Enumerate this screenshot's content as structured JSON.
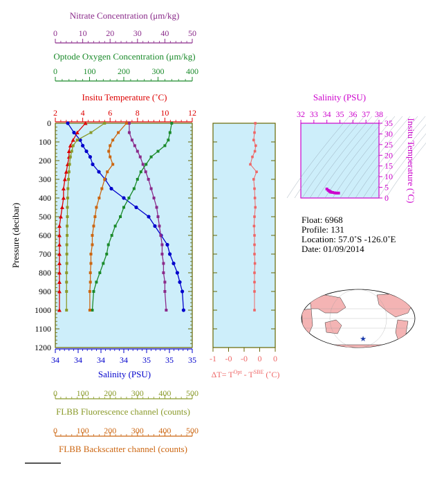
{
  "chart_data": {
    "type": "line",
    "profile_panel": {
      "pressure_axis": {
        "label": "Pressure (decibar)",
        "ticks": [
          "0",
          "100",
          "200",
          "300",
          "400",
          "500",
          "600",
          "700",
          "800",
          "900",
          "1000",
          "1100",
          "1200"
        ],
        "range": [
          0,
          1200
        ]
      },
      "nitrate_axis": {
        "label": "Nitrate Concentration (μm/kg)",
        "ticks": [
          "0",
          "10",
          "20",
          "30",
          "40",
          "50"
        ],
        "range": [
          0,
          50
        ],
        "color": "#8a2a8a"
      },
      "oxygen_axis": {
        "label": "Optode Oxygen Concentration (μm/kg)",
        "ticks": [
          "0",
          "100",
          "200",
          "300",
          "400"
        ],
        "range": [
          0,
          400
        ],
        "color": "#1a8a2a"
      },
      "temperature_axis": {
        "label": "Insitu Temperature (˚C)",
        "ticks": [
          "2",
          "4",
          "6",
          "8",
          "10",
          "12"
        ],
        "range": [
          2,
          12
        ],
        "color": "#dd0000"
      },
      "salinity_axis": {
        "label": "Salinity (PSU)",
        "ticks": [
          "34",
          "34",
          "34",
          "34",
          "35",
          "35",
          "35"
        ],
        "range": [
          33.9,
          35.0
        ],
        "color": "#0000cc"
      },
      "fluorescence_axis": {
        "label": "FLBB Fluorescence channel (counts)",
        "ticks": [
          "0",
          "100",
          "200",
          "300",
          "400",
          "500"
        ],
        "range": [
          0,
          500
        ],
        "color": "#8a9a2a"
      },
      "backscatter_axis": {
        "label": "FLBB Backscatter channel (counts)",
        "ticks": [
          "0",
          "100",
          "200",
          "300",
          "400",
          "500"
        ],
        "range": [
          0,
          500
        ],
        "color": "#cc6611"
      },
      "series": [
        {
          "key": "temperature",
          "color": "#dd0000",
          "marker": "triangle",
          "x": [
            4.2,
            3.6,
            3.3,
            3.1,
            3.0,
            3.0,
            2.9,
            2.8,
            2.7,
            2.6,
            2.6,
            2.5,
            2.4,
            2.3,
            2.3,
            2.3,
            2.3,
            2.3,
            2.3,
            2.3,
            2.3,
            2.3
          ],
          "y": [
            0,
            50,
            90,
            120,
            150,
            180,
            220,
            260,
            300,
            350,
            400,
            450,
            500,
            550,
            600,
            650,
            700,
            750,
            800,
            850,
            900,
            1000
          ]
        },
        {
          "key": "salinity",
          "color": "#0000cc",
          "marker": "circle",
          "x": [
            34.0,
            34.05,
            34.1,
            34.12,
            34.15,
            34.18,
            34.2,
            34.25,
            34.3,
            34.35,
            34.45,
            34.55,
            34.65,
            34.7,
            34.75,
            34.8,
            34.82,
            34.85,
            34.88,
            34.9,
            34.92,
            34.93
          ],
          "y": [
            0,
            50,
            90,
            120,
            150,
            180,
            220,
            260,
            300,
            350,
            400,
            450,
            500,
            550,
            600,
            650,
            700,
            750,
            800,
            850,
            900,
            1000
          ]
        },
        {
          "key": "nitrate",
          "color": "#8a2a8a",
          "marker": "square",
          "x": [
            27,
            27,
            28,
            29,
            30,
            31,
            32,
            33,
            34,
            35,
            36,
            37,
            37.5,
            38,
            38.5,
            39,
            39,
            39.5,
            39.5,
            40,
            40,
            40.5
          ],
          "y": [
            0,
            50,
            90,
            120,
            150,
            180,
            220,
            260,
            300,
            350,
            400,
            450,
            500,
            550,
            600,
            650,
            700,
            750,
            800,
            850,
            900,
            1000
          ]
        },
        {
          "key": "oxygen",
          "color": "#1a8a2a",
          "marker": "square",
          "x": [
            340,
            335,
            330,
            320,
            300,
            280,
            265,
            250,
            240,
            230,
            215,
            200,
            190,
            175,
            165,
            155,
            150,
            140,
            130,
            120,
            112,
            108
          ],
          "y": [
            0,
            50,
            90,
            120,
            150,
            180,
            220,
            260,
            300,
            350,
            400,
            450,
            500,
            550,
            600,
            650,
            700,
            750,
            800,
            850,
            900,
            1000
          ]
        },
        {
          "key": "fluorescence",
          "color": "#8a9a2a",
          "marker": "square",
          "x": [
            180,
            130,
            80,
            65,
            60,
            55,
            52,
            50,
            48,
            46,
            45,
            44,
            44,
            43,
            43,
            42,
            42,
            42,
            41,
            41,
            41,
            41
          ],
          "y": [
            0,
            50,
            90,
            120,
            150,
            180,
            220,
            260,
            300,
            350,
            400,
            450,
            500,
            550,
            600,
            650,
            700,
            750,
            800,
            850,
            900,
            1000
          ]
        },
        {
          "key": "backscatter",
          "color": "#cc6611",
          "marker": "square",
          "x": [
            260,
            230,
            210,
            200,
            195,
            200,
            210,
            190,
            180,
            170,
            160,
            150,
            145,
            140,
            135,
            135,
            130,
            130,
            128,
            128,
            126,
            126
          ],
          "y": [
            0,
            50,
            90,
            120,
            150,
            180,
            220,
            260,
            300,
            350,
            400,
            450,
            500,
            550,
            600,
            650,
            700,
            750,
            800,
            850,
            900,
            1000
          ]
        }
      ]
    },
    "dt_panel": {
      "xlabel": "ΔT= T^Opt - T^SBE (˚C)",
      "ticks": [
        "-1",
        "-0",
        "-0",
        "0",
        "0"
      ],
      "range": [
        -1,
        0.5
      ],
      "color": "#ee6666",
      "x": [
        0.02,
        0.0,
        -0.02,
        0.03,
        0.01,
        -0.05,
        -0.1,
        0.05,
        -0.02,
        0.0,
        0.01,
        0.02,
        0.0,
        -0.01,
        0.0,
        0.0,
        0.0,
        0.01,
        0.0,
        0.0,
        0.0,
        0.0
      ],
      "y": [
        0,
        50,
        90,
        120,
        150,
        180,
        220,
        260,
        300,
        350,
        400,
        450,
        500,
        550,
        600,
        650,
        700,
        750,
        800,
        850,
        900,
        1000
      ]
    },
    "ts_panel": {
      "xlabel": "Salinity (PSU)",
      "ylabel": "Insitu Temperature (˚C)",
      "xticks": [
        "32",
        "33",
        "34",
        "35",
        "36",
        "37",
        "38"
      ],
      "yticks": [
        "0",
        "5",
        "10",
        "15",
        "20",
        "25",
        "30",
        "35"
      ],
      "xrange": [
        32,
        38
      ],
      "yrange": [
        0,
        35
      ],
      "color": "#cc00cc",
      "points": [
        [
          34.0,
          4.2
        ],
        [
          34.1,
          3.6
        ],
        [
          34.2,
          3.1
        ],
        [
          34.3,
          2.9
        ],
        [
          34.45,
          2.6
        ],
        [
          34.6,
          2.4
        ],
        [
          34.75,
          2.3
        ],
        [
          34.9,
          2.3
        ],
        [
          34.2,
          3.3
        ],
        [
          34.3,
          2.7
        ]
      ]
    }
  },
  "info": {
    "float": "Float:  6968",
    "profile": "Profile:  131",
    "location": "Location:  57.0˚S  -126.0˚E",
    "date": "Date:  01/09/2014"
  },
  "colors": {
    "panel_bg": "#cdeefa",
    "frame": "#666600",
    "land": "#f4b4b4"
  }
}
